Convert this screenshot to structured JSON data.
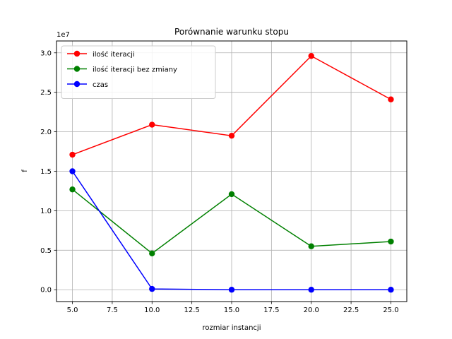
{
  "chart_data": {
    "type": "line",
    "title": "Porównanie warunku stopu",
    "xlabel": "rozmiar instancji",
    "ylabel": "f",
    "y_multiplier_label": "1e7",
    "x": [
      5,
      10,
      15,
      20,
      25
    ],
    "xlim": [
      4,
      26
    ],
    "ylim": [
      -0.15,
      3.15
    ],
    "xticks": [
      5.0,
      7.5,
      10.0,
      12.5,
      15.0,
      17.5,
      20.0,
      22.5,
      25.0
    ],
    "xtick_labels": [
      "5.0",
      "7.5",
      "10.0",
      "12.5",
      "15.0",
      "17.5",
      "20.0",
      "22.5",
      "25.0"
    ],
    "yticks": [
      0.0,
      0.5,
      1.0,
      1.5,
      2.0,
      2.5,
      3.0
    ],
    "ytick_labels": [
      "0.0",
      "0.5",
      "1.0",
      "1.5",
      "2.0",
      "2.5",
      "3.0"
    ],
    "grid": true,
    "legend_position": "top-left",
    "series": [
      {
        "name": "ilość iteracji",
        "color": "#ff0000",
        "values": [
          1.71,
          2.09,
          1.95,
          2.96,
          2.41
        ]
      },
      {
        "name": "ilość iteracji bez zmiany",
        "color": "#008000",
        "values": [
          1.27,
          0.46,
          1.21,
          0.55,
          0.61
        ]
      },
      {
        "name": "czas",
        "color": "#0000ff",
        "values": [
          1.5,
          0.01,
          0.0,
          0.0,
          0.0
        ]
      }
    ]
  }
}
